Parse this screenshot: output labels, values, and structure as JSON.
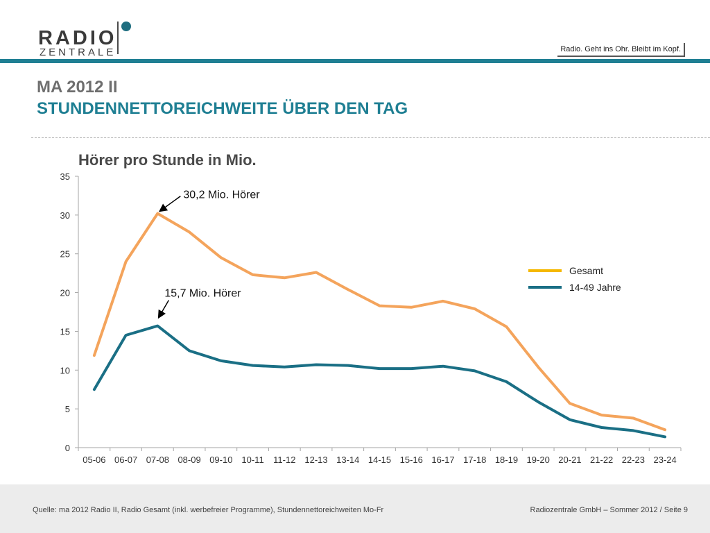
{
  "brand": {
    "logo_top": "RADIO",
    "logo_bottom": "ZENTRALE",
    "slogan": "Radio. Geht ins Ohr. Bleibt im Kopf."
  },
  "title": {
    "line1": "MA 2012 II",
    "line2": "STUNDENNETTOREICHWEITE ÜBER DEN TAG"
  },
  "chart_data": {
    "type": "line",
    "subtitle": "Hörer pro Stunde in Mio.",
    "categories": [
      "05-06",
      "06-07",
      "07-08",
      "08-09",
      "09-10",
      "10-11",
      "11-12",
      "12-13",
      "13-14",
      "14-15",
      "15-16",
      "16-17",
      "17-18",
      "18-19",
      "19-20",
      "20-21",
      "21-22",
      "22-23",
      "23-24"
    ],
    "series": [
      {
        "name": "Gesamt",
        "color": "#f4a45c",
        "values": [
          11.9,
          24.0,
          30.2,
          27.8,
          24.5,
          22.3,
          21.9,
          22.6,
          20.4,
          18.3,
          18.1,
          18.9,
          17.9,
          15.6,
          10.4,
          5.7,
          4.2,
          3.8,
          2.3
        ]
      },
      {
        "name": "14-49 Jahre",
        "color": "#1a6f85",
        "values": [
          7.5,
          14.5,
          15.7,
          12.5,
          11.2,
          10.6,
          10.4,
          10.7,
          10.6,
          10.2,
          10.2,
          10.5,
          9.9,
          8.5,
          5.9,
          3.6,
          2.6,
          2.2,
          1.4
        ]
      }
    ],
    "legend": [
      {
        "label": "Gesamt",
        "color": "#f5b800"
      },
      {
        "label": "14-49 Jahre",
        "color": "#1a6f85"
      }
    ],
    "legend_position": "right",
    "ylim": [
      0,
      35
    ],
    "yticks": [
      0,
      5,
      10,
      15,
      20,
      25,
      30,
      35
    ],
    "grid": false,
    "annotations": [
      {
        "text": "30,2 Mio. Hörer",
        "series": 0,
        "category": "07-08",
        "value": 30.2
      },
      {
        "text": "15,7  Mio. Hörer",
        "series": 1,
        "category": "07-08",
        "value": 15.7
      }
    ]
  },
  "footer": {
    "source": "Quelle: ma 2012 Radio II, Radio Gesamt (inkl. werbefreier Programme), Stundennettoreichweiten Mo-Fr",
    "page": "Radiozentrale GmbH – Sommer 2012 / Seite 9"
  }
}
